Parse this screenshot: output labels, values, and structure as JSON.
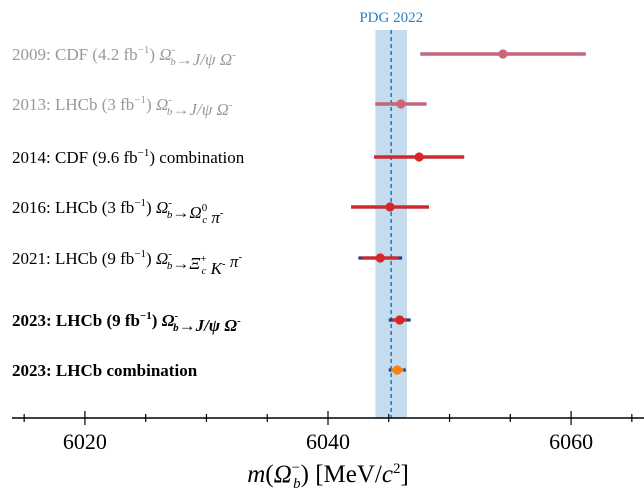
{
  "chart_data": {
    "type": "scatter",
    "title": "",
    "xlabel": "m(Ω_b^-) [MeV/c²]",
    "xlim": [
      6014,
      6066
    ],
    "xticks": [
      6020,
      6040,
      6060
    ],
    "reference": {
      "label": "PDG 2022",
      "center": 6045.2,
      "band": [
        6043.9,
        6046.5
      ],
      "color": "#2a7fbf",
      "band_color": "#c5dbee"
    },
    "measurements": [
      {
        "year": "2009:",
        "experiment": "CDF (4.2 fb",
        "lumi_sup": "−1",
        "close": ")",
        "process": "Ω_b^- → J/ψ Ω^-",
        "value": 6054.4,
        "stat": [
          6047.6,
          6061.2
        ],
        "syst": [
          6047.6,
          6061.2
        ],
        "color": "#cc6677",
        "text_color": "#999999",
        "bold": false
      },
      {
        "year": "2013:",
        "experiment": "LHCb (3 fb",
        "lumi_sup": "−1",
        "close": ")",
        "process": "Ω_b^- → J/ψ Ω^-",
        "value": 6046.0,
        "stat": [
          6043.9,
          6048.1
        ],
        "syst": [
          6043.9,
          6048.1
        ],
        "color": "#cc6677",
        "text_color": "#999999",
        "bold": false
      },
      {
        "year": "2014:",
        "experiment": "CDF (9.6 fb",
        "lumi_sup": "−1",
        "close": ")",
        "process": "combination",
        "value": 6047.5,
        "stat": [
          6043.8,
          6051.2
        ],
        "syst": [
          6043.8,
          6051.2
        ],
        "color": "#d62728",
        "text_color": "#000000",
        "bold": false
      },
      {
        "year": "2016:",
        "experiment": "LHCb (3 fb",
        "lumi_sup": "−1",
        "close": ")",
        "process": "Ω_b^- → Ω_c^0 π^-",
        "value": 6045.1,
        "stat": [
          6041.9,
          6048.3
        ],
        "syst": [
          6041.9,
          6048.3
        ],
        "color": "#d62728",
        "text_color": "#000000",
        "bold": false
      },
      {
        "year": "2021:",
        "experiment": "LHCb (9 fb",
        "lumi_sup": "−1",
        "close": ")",
        "process": "Ω_b^- → Ξ_c^+ K^- π^-",
        "value": 6044.3,
        "stat": [
          6042.8,
          6045.8
        ],
        "syst": [
          6042.5,
          6046.1
        ],
        "color": "#d62728",
        "text_color": "#000000",
        "bold": false
      },
      {
        "year": "2023:",
        "experiment": "LHCb (9 fb",
        "lumi_sup": "−1",
        "close": ")",
        "process": "Ω_b^- → J/ψ Ω^-",
        "value": 6045.9,
        "stat": [
          6045.3,
          6046.5
        ],
        "syst": [
          6045.0,
          6046.8
        ],
        "color": "#d62728",
        "text_color": "#000000",
        "bold": true
      },
      {
        "year": "2023:",
        "experiment": "LHCb combination",
        "lumi_sup": "",
        "close": "",
        "process": "",
        "value": 6045.7,
        "stat": [
          6045.2,
          6046.2
        ],
        "syst": [
          6045.0,
          6046.4
        ],
        "color": "#ff7f0e",
        "text_color": "#000000",
        "bold": true
      }
    ],
    "syst_color": "#1f3f8f",
    "grid": false
  }
}
